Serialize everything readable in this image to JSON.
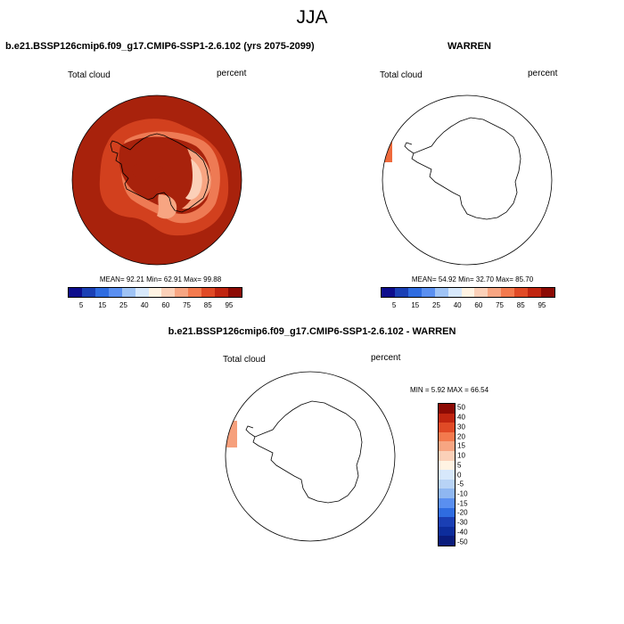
{
  "season": "JJA",
  "panels": {
    "model": {
      "title": "b.e21.BSSP126cmip6.f09_g17.CMIP6-SSP1-2.6.102 (yrs 2075-2099)",
      "variable": "Total cloud",
      "units": "percent",
      "stats": "MEAN= 92.21 Min= 62.91 Max= 99.88"
    },
    "obs": {
      "title": "WARREN",
      "variable": "Total cloud",
      "units": "percent",
      "stats": "MEAN= 54.92 Min= 32.70 Max= 85.70"
    },
    "diff": {
      "title": "b.e21.BSSP126cmip6.f09_g17.CMIP6-SSP1-2.6.102 - WARREN",
      "variable": "Total cloud",
      "units": "percent",
      "stats": "MIN = 5.92 MAX = 66.54"
    }
  },
  "colorbar_abs": {
    "colors": [
      "#0d0d8c",
      "#1a3fb4",
      "#2f6ce0",
      "#5a8ff0",
      "#9fc3f5",
      "#d7e8fb",
      "#fff3e3",
      "#fbd0b8",
      "#f7a582",
      "#f37a4e",
      "#e04a26",
      "#c02510",
      "#8c0a04"
    ],
    "tick_labels": [
      "5",
      "15",
      "25",
      "40",
      "60",
      "75",
      "85",
      "95"
    ]
  },
  "colorbar_diff": {
    "colors": [
      "#8c0a04",
      "#c02510",
      "#e04a26",
      "#f37a4e",
      "#f7a582",
      "#fbd0b8",
      "#fff3e3",
      "#d7e8fb",
      "#b8d3f6",
      "#8fb7f1",
      "#5a8ff0",
      "#2f6ce0",
      "#1a3fb4",
      "#0d2d9c",
      "#0a1c7c"
    ],
    "tick_labels": [
      "50",
      "40",
      "30",
      "20",
      "15",
      "10",
      "5",
      "0",
      "-5",
      "-10",
      "-15",
      "-20",
      "-30",
      "-40",
      "-50"
    ]
  },
  "map_colors": {
    "ocean_high": "#a8220c",
    "band_mid": "#d2401e",
    "band_light": "#ee7a54",
    "band_pale": "#f7a582",
    "inner_pale": "#fbd0b8",
    "strip_obs": "#ef6a3c",
    "strip_diff": "#f6a07c",
    "coast": "#000000"
  }
}
